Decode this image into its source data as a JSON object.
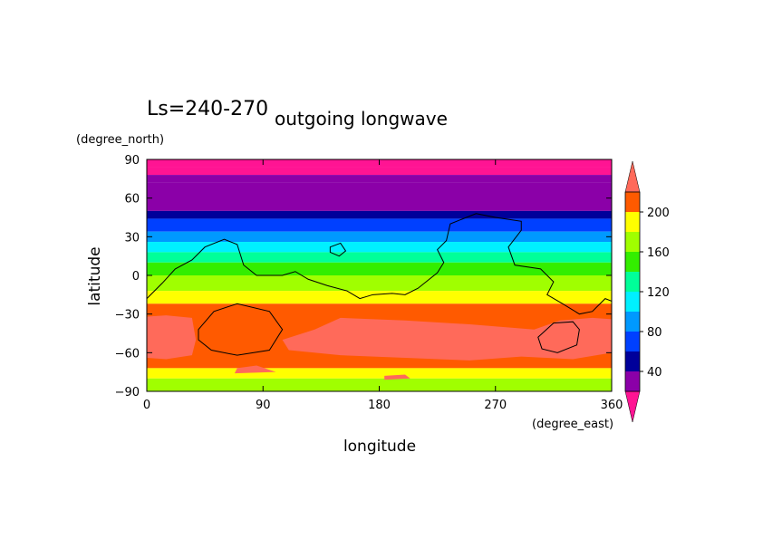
{
  "chart_data": {
    "type": "heatmap",
    "title": "outgoing longwave",
    "subtitle": "Ls=240-270",
    "xlabel": "longitude",
    "ylabel": "latitude",
    "x_units": "(degree_east)",
    "y_units": "(degree_north)",
    "xlim": [
      0,
      360
    ],
    "ylim": [
      -90,
      90
    ],
    "x_ticks": [
      "0",
      "90",
      "180",
      "270",
      "360"
    ],
    "y_ticks": [
      "90",
      "60",
      "30",
      "0",
      "−30",
      "−60",
      "−90"
    ],
    "x_tick_values": [
      0,
      90,
      180,
      270,
      360
    ],
    "y_tick_values": [
      90,
      60,
      30,
      0,
      -30,
      -60,
      -90
    ],
    "colorbar": {
      "levels": [
        20,
        40,
        60,
        80,
        100,
        120,
        140,
        160,
        180,
        200,
        220
      ],
      "tick_labels": [
        "40",
        "80",
        "120",
        "160",
        "200"
      ],
      "tick_values": [
        40,
        80,
        120,
        160,
        200
      ],
      "colors": [
        "#ff1493",
        "#8b00a8",
        "#00009a",
        "#0040ff",
        "#0099ff",
        "#00f0ff",
        "#00ff99",
        "#33ee00",
        "#a0ff00",
        "#ffff00",
        "#ff5a00",
        "#ff6a5a"
      ]
    },
    "zonal_mean_bands": [
      {
        "lat_from": 90,
        "lat_to": 84,
        "value": 10
      },
      {
        "lat_from": 84,
        "lat_to": 78,
        "value": 15
      },
      {
        "lat_from": 78,
        "lat_to": 72,
        "value": 25
      },
      {
        "lat_from": 72,
        "lat_to": 50,
        "value": 30
      },
      {
        "lat_from": 50,
        "lat_to": 44,
        "value": 50
      },
      {
        "lat_from": 44,
        "lat_to": 34,
        "value": 70
      },
      {
        "lat_from": 34,
        "lat_to": 26,
        "value": 90
      },
      {
        "lat_from": 26,
        "lat_to": 18,
        "value": 110
      },
      {
        "lat_from": 18,
        "lat_to": 10,
        "value": 130
      },
      {
        "lat_from": 10,
        "lat_to": 0,
        "value": 150
      },
      {
        "lat_from": 0,
        "lat_to": -12,
        "value": 170
      },
      {
        "lat_from": -12,
        "lat_to": -22,
        "value": 190
      },
      {
        "lat_from": -22,
        "lat_to": -72,
        "value": 210
      },
      {
        "lat_from": -72,
        "lat_to": -80,
        "value": 190
      },
      {
        "lat_from": -80,
        "lat_to": -90,
        "value": 170
      }
    ],
    "high_regions": [
      {
        "name": "region-west",
        "value": 230,
        "points": [
          [
            0,
            -32
          ],
          [
            15,
            -31
          ],
          [
            35,
            -33
          ],
          [
            38,
            -50
          ],
          [
            35,
            -62
          ],
          [
            15,
            -65
          ],
          [
            0,
            -64
          ]
        ]
      },
      {
        "name": "region-central",
        "value": 230,
        "points": [
          [
            105,
            -50
          ],
          [
            130,
            -42
          ],
          [
            150,
            -33
          ],
          [
            200,
            -35
          ],
          [
            250,
            -38
          ],
          [
            300,
            -42
          ],
          [
            320,
            -35
          ],
          [
            345,
            -33
          ],
          [
            360,
            -34
          ],
          [
            360,
            -60
          ],
          [
            330,
            -65
          ],
          [
            290,
            -63
          ],
          [
            250,
            -66
          ],
          [
            200,
            -64
          ],
          [
            150,
            -62
          ],
          [
            110,
            -58
          ]
        ]
      },
      {
        "name": "region-small-1",
        "value": 230,
        "points": [
          [
            70,
            -72
          ],
          [
            85,
            -70
          ],
          [
            100,
            -75
          ],
          [
            68,
            -76
          ]
        ]
      },
      {
        "name": "region-small-2",
        "value": 230,
        "points": [
          [
            184,
            -78
          ],
          [
            200,
            -77
          ],
          [
            204,
            -80
          ],
          [
            184,
            -81
          ]
        ]
      }
    ],
    "contours": [
      {
        "name": "contour-north",
        "points": [
          [
            0,
            -18
          ],
          [
            12,
            -6
          ],
          [
            22,
            5
          ],
          [
            35,
            12
          ],
          [
            45,
            22
          ],
          [
            60,
            28
          ],
          [
            70,
            24
          ],
          [
            75,
            8
          ],
          [
            85,
            0
          ],
          [
            105,
            0
          ],
          [
            115,
            3
          ],
          [
            125,
            -3
          ],
          [
            140,
            -8
          ],
          [
            155,
            -12
          ],
          [
            165,
            -18
          ],
          [
            175,
            -15
          ],
          [
            190,
            -14
          ],
          [
            200,
            -15
          ],
          [
            210,
            -10
          ],
          [
            225,
            2
          ],
          [
            230,
            10
          ],
          [
            225,
            20
          ],
          [
            232,
            27
          ],
          [
            235,
            40
          ],
          [
            255,
            48
          ],
          [
            270,
            45
          ],
          [
            290,
            42
          ],
          [
            290,
            35
          ],
          [
            280,
            22
          ],
          [
            285,
            8
          ],
          [
            305,
            5
          ],
          [
            315,
            -5
          ],
          [
            310,
            -15
          ],
          [
            322,
            -22
          ],
          [
            335,
            -30
          ],
          [
            345,
            -28
          ],
          [
            355,
            -18
          ],
          [
            360,
            -20
          ]
        ]
      },
      {
        "name": "contour-loop-west",
        "points": [
          [
            40,
            -42
          ],
          [
            52,
            -28
          ],
          [
            70,
            -22
          ],
          [
            95,
            -28
          ],
          [
            105,
            -42
          ],
          [
            95,
            -58
          ],
          [
            70,
            -62
          ],
          [
            50,
            -58
          ],
          [
            40,
            -50
          ]
        ]
      },
      {
        "name": "contour-loop-east",
        "points": [
          [
            303,
            -48
          ],
          [
            315,
            -37
          ],
          [
            330,
            -36
          ],
          [
            335,
            -42
          ],
          [
            333,
            -54
          ],
          [
            318,
            -60
          ],
          [
            306,
            -57
          ]
        ]
      },
      {
        "name": "contour-loop-small",
        "points": [
          [
            142,
            22
          ],
          [
            150,
            25
          ],
          [
            154,
            19
          ],
          [
            149,
            15
          ],
          [
            142,
            18
          ]
        ]
      }
    ]
  }
}
